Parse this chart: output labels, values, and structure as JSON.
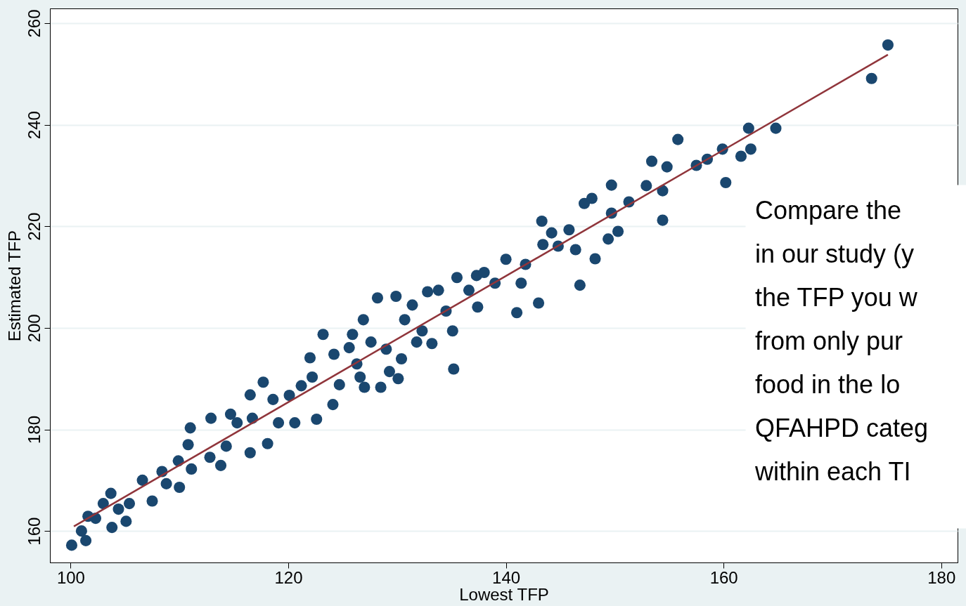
{
  "chart_data": {
    "type": "scatter",
    "xlabel": "Lowest TFP",
    "ylabel": "Estimated TFP",
    "xlim": [
      98.1,
      181.5
    ],
    "ylim": [
      153.8,
      262.9
    ],
    "xticks": [
      100,
      120,
      140,
      160,
      180
    ],
    "yticks": [
      160,
      180,
      200,
      220,
      240,
      260
    ],
    "grid": "y",
    "annotations": [
      "Compare the\nin our study (y\nthe TFP you w\nfrom only pur\nfood in the lo\nQFAHPD categ\nwithin each TI"
    ],
    "series": [
      {
        "type": "scatter",
        "marker": "circle",
        "color": "#1a476f",
        "x": [
          100.1,
          101,
          101.4,
          101.6,
          102.3,
          103,
          103.7,
          103.8,
          104.4,
          105.1,
          105.4,
          106.6,
          107.5,
          108.4,
          108.8,
          109.9,
          110,
          110.8,
          111,
          111.1,
          112.9,
          112.8,
          113.8,
          114.3,
          114.7,
          115.3,
          116.5,
          116.7,
          116.5,
          117.7,
          118.1,
          118.6,
          119.1,
          120.1,
          120.6,
          121.2,
          122,
          122.2,
          122.6,
          123.2,
          124.1,
          124.2,
          124.7,
          125.6,
          125.9,
          126.3,
          126.6,
          126.9,
          127,
          127.6,
          128.2,
          128.5,
          129,
          129.3,
          129.9,
          130.1,
          130.4,
          130.7,
          131.4,
          131.8,
          132.3,
          132.8,
          133.2,
          133.8,
          134.5,
          135.2,
          135.1,
          135.5,
          136.6,
          137.3,
          138,
          137.4,
          139,
          140,
          141,
          141.4,
          141.8,
          143,
          143.3,
          143.4,
          144.2,
          144.8,
          145.8,
          146.4,
          146.8,
          147.2,
          147.9,
          148.2,
          149.4,
          149.7,
          149.7,
          150.3,
          151.3,
          152.9,
          153.4,
          154.4,
          154.4,
          154.8,
          155.8,
          157.5,
          158.5,
          159.9,
          160.2,
          161.6,
          162.3,
          162.5,
          164.8,
          173.6,
          175.1
        ],
        "values": [
          157.2,
          160,
          158.1,
          162.9,
          162.5,
          165.4,
          167.4,
          160.7,
          164.3,
          161.9,
          165.4,
          170,
          165.9,
          171.7,
          169.3,
          173.8,
          168.6,
          177,
          180.3,
          172.2,
          182.2,
          174.5,
          172.9,
          176.7,
          183,
          181.3,
          186.8,
          182.2,
          175.4,
          189.3,
          177.2,
          185.9,
          181.3,
          186.7,
          181.3,
          188.6,
          194.1,
          190.3,
          182,
          198.7,
          184.9,
          194.8,
          188.8,
          196.1,
          198.7,
          192.9,
          190.3,
          201.6,
          188.3,
          197.2,
          205.9,
          188.3,
          195.8,
          191.4,
          206.2,
          190,
          193.9,
          201.6,
          204.5,
          197.2,
          199.4,
          207.1,
          196.9,
          207.4,
          203.3,
          191.9,
          199.4,
          209.9,
          207.4,
          210.3,
          210.9,
          204.1,
          208.8,
          213.5,
          203,
          208.8,
          212.5,
          204.9,
          221,
          216.4,
          218.7,
          216.1,
          219.3,
          215.4,
          208.4,
          224.5,
          225.5,
          213.6,
          217.5,
          228.1,
          222.6,
          219,
          224.8,
          228,
          232.8,
          221.2,
          227,
          231.7,
          237.1,
          232,
          233.2,
          235.2,
          228.6,
          233.8,
          239.3,
          235.2,
          239.3,
          249.1,
          255.7
        ]
      },
      {
        "type": "line",
        "marker": "none",
        "line_style": "solid",
        "color": "#90353b",
        "x": [
          100.3,
          175.1
        ],
        "values": [
          160.9,
          253.8
        ]
      }
    ]
  }
}
